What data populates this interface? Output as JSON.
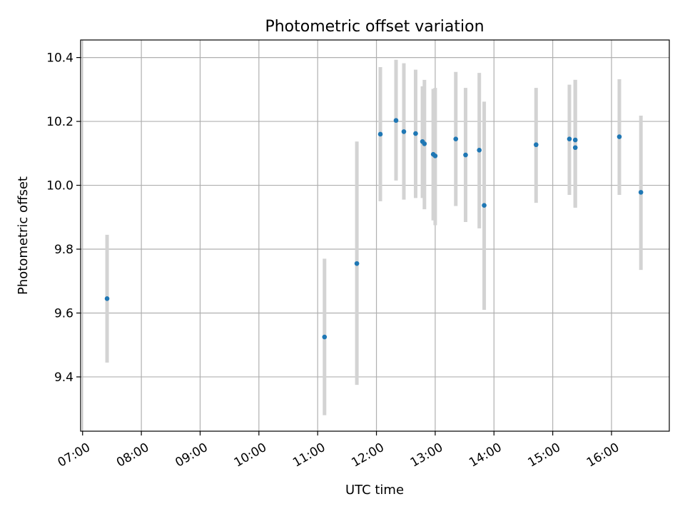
{
  "chart_data": {
    "type": "scatter",
    "title": "Photometric offset variation",
    "xlabel": "UTC time",
    "ylabel": "Photometric offset",
    "x_ticks": [
      "07:00",
      "08:00",
      "09:00",
      "10:00",
      "11:00",
      "12:00",
      "13:00",
      "14:00",
      "15:00",
      "16:00"
    ],
    "y_ticks": [
      "9.4",
      "9.6",
      "9.8",
      "10.0",
      "10.2",
      "10.4"
    ],
    "grid": true,
    "xlim": [
      "06:58",
      "16:59"
    ],
    "ylim": [
      9.23,
      10.455
    ],
    "colors": {
      "marker": "#1f77b4",
      "errorbar": "#d3d3d3",
      "grid": "#b0b0b0"
    },
    "points": [
      {
        "x": "07:25",
        "y": 9.645,
        "ylow": 9.445,
        "yhigh": 9.845
      },
      {
        "x": "11:07",
        "y": 9.525,
        "ylow": 9.28,
        "yhigh": 9.77
      },
      {
        "x": "11:40",
        "y": 9.755,
        "ylow": 9.375,
        "yhigh": 10.137
      },
      {
        "x": "12:04",
        "y": 10.16,
        "ylow": 9.95,
        "yhigh": 10.37
      },
      {
        "x": "12:20",
        "y": 10.203,
        "ylow": 10.015,
        "yhigh": 10.393
      },
      {
        "x": "12:28",
        "y": 10.168,
        "ylow": 9.955,
        "yhigh": 10.382
      },
      {
        "x": "12:40",
        "y": 10.162,
        "ylow": 9.96,
        "yhigh": 10.362
      },
      {
        "x": "12:47",
        "y": 10.137,
        "ylow": 9.96,
        "yhigh": 10.31
      },
      {
        "x": "12:49",
        "y": 10.13,
        "ylow": 9.925,
        "yhigh": 10.33
      },
      {
        "x": "12:58",
        "y": 10.097,
        "ylow": 9.89,
        "yhigh": 10.302
      },
      {
        "x": "13:00",
        "y": 10.092,
        "ylow": 9.875,
        "yhigh": 10.305
      },
      {
        "x": "13:21",
        "y": 10.145,
        "ylow": 9.935,
        "yhigh": 10.355
      },
      {
        "x": "13:31",
        "y": 10.095,
        "ylow": 9.885,
        "yhigh": 10.305
      },
      {
        "x": "13:45",
        "y": 10.11,
        "ylow": 9.865,
        "yhigh": 10.352
      },
      {
        "x": "13:50",
        "y": 9.937,
        "ylow": 9.61,
        "yhigh": 10.262
      },
      {
        "x": "14:43",
        "y": 10.127,
        "ylow": 9.945,
        "yhigh": 10.305
      },
      {
        "x": "15:17",
        "y": 10.145,
        "ylow": 9.97,
        "yhigh": 10.315
      },
      {
        "x": "15:23",
        "y": 10.142,
        "ylow": 9.93,
        "yhigh": 10.33
      },
      {
        "x": "15:23",
        "y": 10.118,
        "ylow": 9.93,
        "yhigh": 10.33
      },
      {
        "x": "16:08",
        "y": 10.152,
        "ylow": 9.97,
        "yhigh": 10.332
      },
      {
        "x": "16:30",
        "y": 9.978,
        "ylow": 9.735,
        "yhigh": 10.218
      }
    ]
  }
}
